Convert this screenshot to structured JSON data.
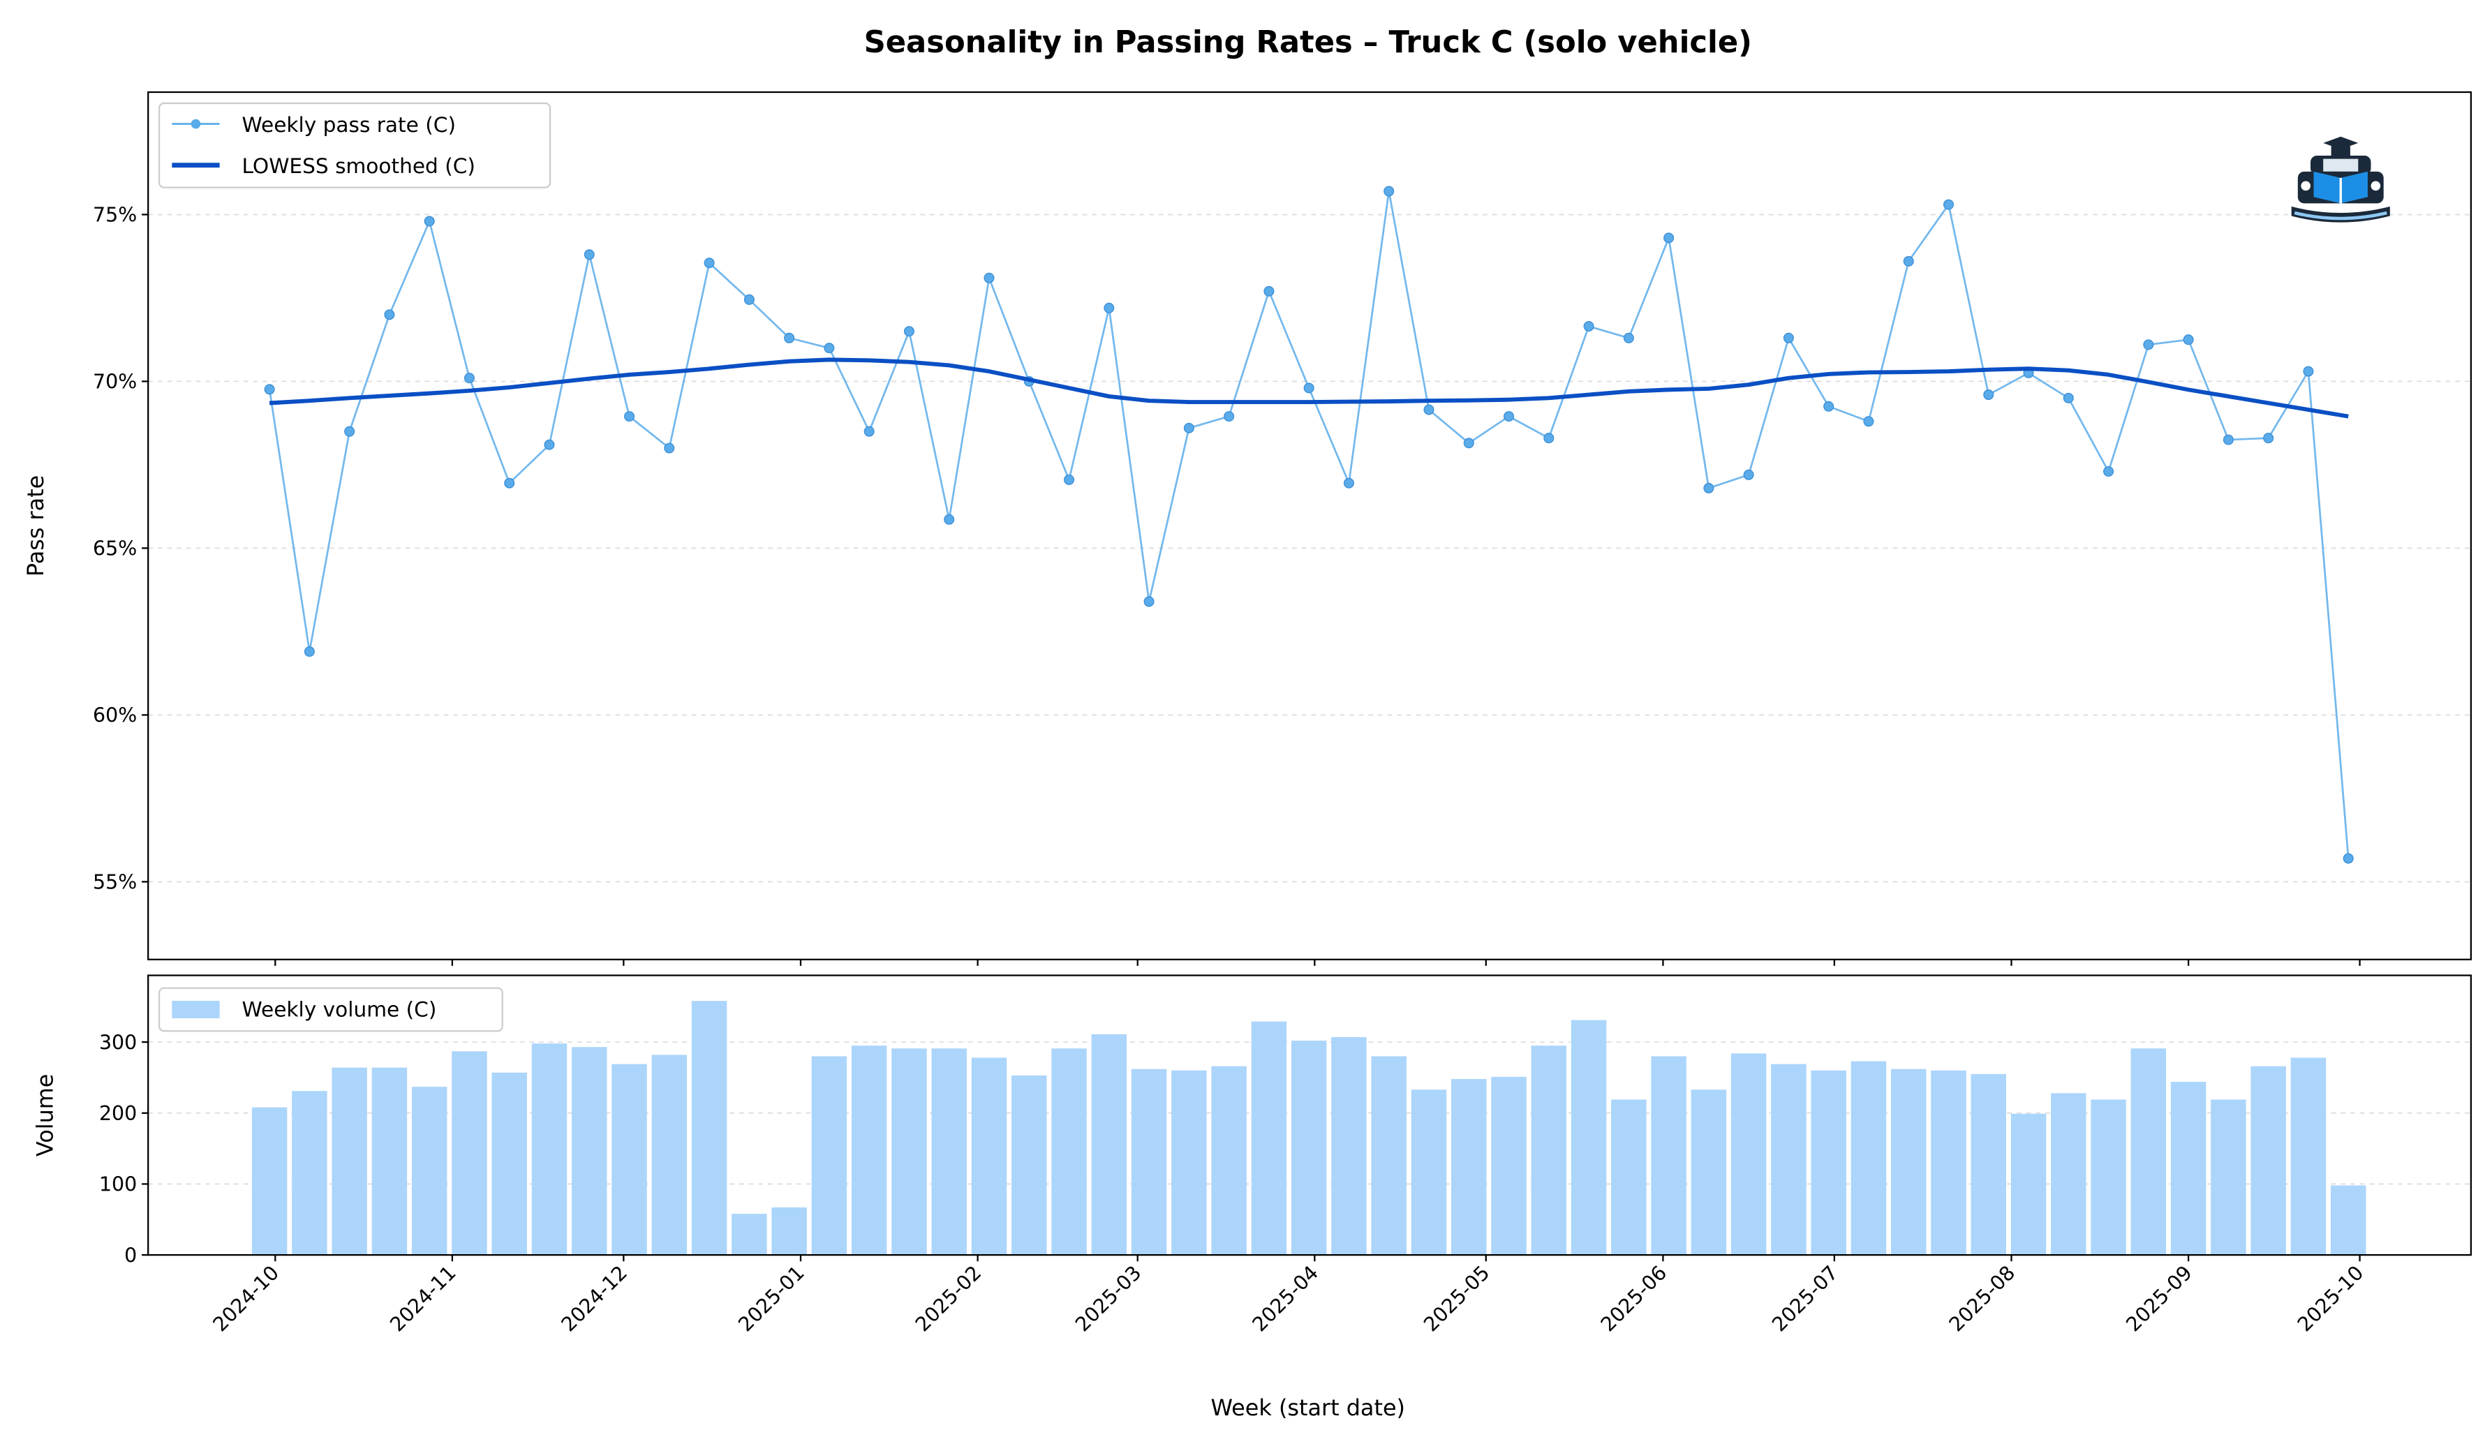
{
  "chart_data": [
    {
      "type": "line",
      "title": "Seasonality in Passing Rates – Truck C (solo vehicle)",
      "xlabel": "",
      "ylabel": "Pass rate",
      "ylim": [
        52.67,
        78.67
      ],
      "yticks": [
        "55%",
        "60%",
        "65%",
        "70%",
        "75%"
      ],
      "ytick_values": [
        55,
        60,
        65,
        70,
        75
      ],
      "grid": "horizontal dashed",
      "legend_placement": "top-left",
      "x_start_week": "2024-09-30",
      "x": [
        "2024-09-30",
        "2024-10-07",
        "2024-10-14",
        "2024-10-21",
        "2024-10-28",
        "2024-11-04",
        "2024-11-11",
        "2024-11-18",
        "2024-11-25",
        "2024-12-02",
        "2024-12-09",
        "2024-12-16",
        "2024-12-23",
        "2024-12-30",
        "2025-01-06",
        "2025-01-13",
        "2025-01-20",
        "2025-01-27",
        "2025-02-03",
        "2025-02-10",
        "2025-02-17",
        "2025-02-24",
        "2025-03-03",
        "2025-03-10",
        "2025-03-17",
        "2025-03-24",
        "2025-03-31",
        "2025-04-07",
        "2025-04-14",
        "2025-04-21",
        "2025-04-28",
        "2025-05-05",
        "2025-05-12",
        "2025-05-19",
        "2025-05-26",
        "2025-06-02",
        "2025-06-09",
        "2025-06-16",
        "2025-06-23",
        "2025-06-30",
        "2025-07-07",
        "2025-07-14",
        "2025-07-21",
        "2025-07-28",
        "2025-08-04",
        "2025-08-11",
        "2025-08-18",
        "2025-08-25",
        "2025-09-01",
        "2025-09-08",
        "2025-09-15",
        "2025-09-22",
        "2025-09-29"
      ],
      "series": [
        {
          "name": "Weekly pass rate (C)",
          "color": "#5aabea",
          "values": [
            69.76,
            61.9,
            68.5,
            72.0,
            74.8,
            70.1,
            66.95,
            68.1,
            73.8,
            68.95,
            68.0,
            73.55,
            72.45,
            71.3,
            71.0,
            68.5,
            71.5,
            65.86,
            73.1,
            70.0,
            67.05,
            72.2,
            63.4,
            68.6,
            68.95,
            72.7,
            69.8,
            66.95,
            75.7,
            69.15,
            68.15,
            68.95,
            68.3,
            71.65,
            71.3,
            74.3,
            66.8,
            67.2,
            71.3,
            69.25,
            68.8,
            73.6,
            75.3,
            69.6,
            70.25,
            69.5,
            67.3,
            71.1,
            71.25,
            68.25,
            68.3,
            70.3,
            55.7
          ]
        },
        {
          "name": "LOWESS smoothed (C)",
          "color": "#0a4fc4",
          "values": [
            69.35,
            69.42,
            69.5,
            69.57,
            69.64,
            69.72,
            69.82,
            69.95,
            70.08,
            70.2,
            70.28,
            70.38,
            70.5,
            70.6,
            70.65,
            70.63,
            70.58,
            70.48,
            70.3,
            70.05,
            69.8,
            69.55,
            69.42,
            69.38,
            69.38,
            69.38,
            69.38,
            69.39,
            69.4,
            69.42,
            69.43,
            69.45,
            69.5,
            69.6,
            69.7,
            69.75,
            69.78,
            69.9,
            70.1,
            70.22,
            70.27,
            70.28,
            70.3,
            70.35,
            70.38,
            70.33,
            70.2,
            69.98,
            69.75,
            69.55,
            69.35,
            69.15,
            68.95
          ]
        }
      ]
    },
    {
      "type": "bar",
      "xlabel": "Week (start date)",
      "ylabel": "Volume",
      "ylim": [
        0,
        394
      ],
      "yticks": [
        "0",
        "100",
        "200",
        "300"
      ],
      "ytick_values": [
        0,
        100,
        200,
        300
      ],
      "legend_placement": "top-left",
      "xticks": [
        "2024-10",
        "2024-11",
        "2024-12",
        "2025-01",
        "2025-02",
        "2025-03",
        "2025-04",
        "2025-05",
        "2025-06",
        "2025-07",
        "2025-08",
        "2025-09",
        "2025-10"
      ],
      "series": [
        {
          "name": "Weekly volume (C)",
          "color": "#acd5fb",
          "values": [
            208,
            231,
            264,
            264,
            237,
            287,
            257,
            298,
            293,
            269,
            282,
            358,
            58,
            67,
            280,
            295,
            291,
            291,
            278,
            253,
            291,
            311,
            262,
            260,
            266,
            329,
            302,
            307,
            280,
            233,
            248,
            251,
            295,
            331,
            219,
            280,
            233,
            284,
            269,
            260,
            273,
            262,
            260,
            255,
            199,
            228,
            219,
            291,
            244,
            219,
            266,
            278,
            98
          ]
        }
      ]
    }
  ],
  "logo": {
    "icon": "truck-with-graduation-cap-logo"
  }
}
